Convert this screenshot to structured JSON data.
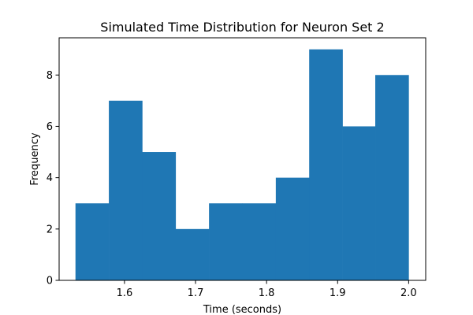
{
  "chart_data": {
    "type": "bar",
    "title": "Simulated Time Distribution for Neuron Set 2",
    "xlabel": "Time (seconds)",
    "ylabel": "Frequency",
    "xlim": [
      1.508,
      2.024
    ],
    "ylim": [
      0,
      9.45
    ],
    "xticks": [
      1.6,
      1.7,
      1.8,
      1.9,
      2.0
    ],
    "xtick_labels": [
      "1.6",
      "1.7",
      "1.8",
      "1.9",
      "2.0"
    ],
    "yticks": [
      0,
      2,
      4,
      6,
      8
    ],
    "ytick_labels": [
      "0",
      "2",
      "4",
      "6",
      "8"
    ],
    "bin_edges": [
      1.531,
      1.578,
      1.625,
      1.672,
      1.719,
      1.766,
      1.813,
      1.86,
      1.907,
      1.953,
      2.0
    ],
    "values": [
      3,
      7,
      5,
      2,
      3,
      3,
      4,
      9,
      6,
      8
    ],
    "bar_color": "#1f77b4",
    "grid": false
  }
}
